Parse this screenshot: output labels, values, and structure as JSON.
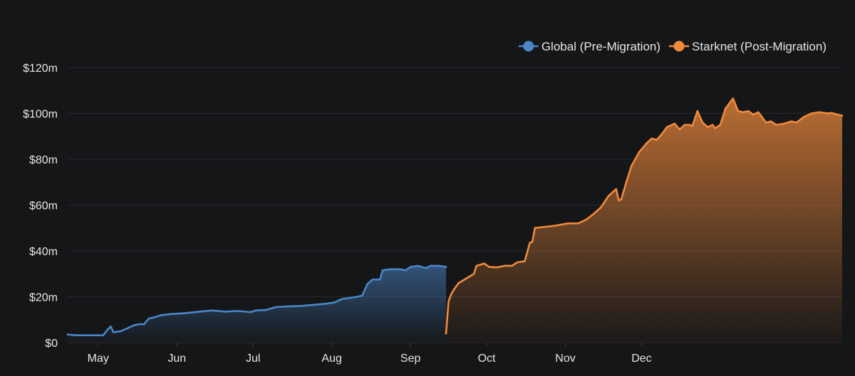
{
  "chart_data": {
    "type": "area",
    "title": "",
    "xlabel": "",
    "ylabel": "",
    "x_ticks": [
      "May",
      "Jun",
      "Jul",
      "Aug",
      "Sep",
      "Oct",
      "Nov",
      "Dec"
    ],
    "y_ticks": [
      "$0",
      "$20m",
      "$40m",
      "$60m",
      "$80m",
      "$100m",
      "$120m"
    ],
    "ylim": [
      0,
      120
    ],
    "y_unit": "$m",
    "grid": true,
    "legend_position": "top-right",
    "series": [
      {
        "name": "Global (Pre-Migration)",
        "color": "#4a86c8",
        "points": [
          [
            "04-19",
            3.5
          ],
          [
            "04-22",
            3.2
          ],
          [
            "04-26",
            3.2
          ],
          [
            "04-30",
            3.2
          ],
          [
            "05-03",
            3.2
          ],
          [
            "05-05",
            6.0
          ],
          [
            "05-06",
            7.0
          ],
          [
            "05-07",
            4.5
          ],
          [
            "05-10",
            5.0
          ],
          [
            "05-13",
            6.5
          ],
          [
            "05-15",
            7.5
          ],
          [
            "05-17",
            8.0
          ],
          [
            "05-19",
            8.0
          ],
          [
            "05-21",
            10.5
          ],
          [
            "05-23",
            11.0
          ],
          [
            "05-26",
            12.0
          ],
          [
            "05-30",
            12.5
          ],
          [
            "06-04",
            12.8
          ],
          [
            "06-10",
            13.5
          ],
          [
            "06-15",
            14.0
          ],
          [
            "06-20",
            13.5
          ],
          [
            "06-25",
            13.8
          ],
          [
            "06-30",
            13.3
          ],
          [
            "07-02",
            14.0
          ],
          [
            "07-06",
            14.2
          ],
          [
            "07-10",
            15.5
          ],
          [
            "07-15",
            15.8
          ],
          [
            "07-20",
            16.0
          ],
          [
            "07-25",
            16.5
          ],
          [
            "07-30",
            17.0
          ],
          [
            "08-02",
            17.5
          ],
          [
            "08-05",
            19.0
          ],
          [
            "08-08",
            19.5
          ],
          [
            "08-11",
            20.0
          ],
          [
            "08-13",
            20.5
          ],
          [
            "08-15",
            25.5
          ],
          [
            "08-17",
            27.5
          ],
          [
            "08-20",
            27.5
          ],
          [
            "08-21",
            31.5
          ],
          [
            "08-24",
            32.0
          ],
          [
            "08-28",
            32.0
          ],
          [
            "08-30",
            31.5
          ],
          [
            "09-01",
            33.0
          ],
          [
            "09-04",
            33.5
          ],
          [
            "09-07",
            32.5
          ],
          [
            "09-09",
            33.5
          ],
          [
            "09-12",
            33.5
          ],
          [
            "09-15",
            33.0
          ]
        ]
      },
      {
        "name": "Starknet (Post-Migration)",
        "color": "#f08a3c",
        "points": [
          [
            "09-15",
            4.0
          ],
          [
            "09-16",
            18.0
          ],
          [
            "09-17",
            21.0
          ],
          [
            "09-18",
            23.0
          ],
          [
            "09-20",
            26.0
          ],
          [
            "09-23",
            28.0
          ],
          [
            "09-26",
            30.0
          ],
          [
            "09-27",
            33.5
          ],
          [
            "09-30",
            34.5
          ],
          [
            "10-02",
            33.0
          ],
          [
            "10-05",
            32.8
          ],
          [
            "10-08",
            33.5
          ],
          [
            "10-11",
            33.5
          ],
          [
            "10-13",
            35.0
          ],
          [
            "10-16",
            35.5
          ],
          [
            "10-18",
            43.5
          ],
          [
            "10-19",
            44.0
          ],
          [
            "10-20",
            50.0
          ],
          [
            "10-24",
            50.5
          ],
          [
            "10-28",
            51.0
          ],
          [
            "11-02",
            52.0
          ],
          [
            "11-06",
            52.0
          ],
          [
            "11-09",
            53.5
          ],
          [
            "11-12",
            56.0
          ],
          [
            "11-15",
            59.0
          ],
          [
            "11-18",
            64.0
          ],
          [
            "11-21",
            67.0
          ],
          [
            "11-22",
            62.0
          ],
          [
            "11-23",
            62.5
          ],
          [
            "11-25",
            70.0
          ],
          [
            "11-27",
            77.0
          ],
          [
            "11-30",
            83.0
          ],
          [
            "12-03",
            87.0
          ],
          [
            "12-05",
            89.0
          ],
          [
            "12-07",
            88.5
          ],
          [
            "12-09",
            91.0
          ],
          [
            "12-11",
            94.0
          ],
          [
            "12-14",
            95.5
          ],
          [
            "12-16",
            93.0
          ],
          [
            "12-18",
            95.0
          ],
          [
            "12-20",
            95.0
          ],
          [
            "12-21",
            94.5
          ],
          [
            "12-23",
            101.0
          ],
          [
            "12-25",
            96.0
          ],
          [
            "12-27",
            94.0
          ],
          [
            "12-29",
            95.0
          ],
          [
            "12-30",
            93.5
          ],
          [
            "01-01",
            95.0
          ],
          [
            "01-03",
            102.0
          ],
          [
            "01-06",
            106.5
          ],
          [
            "01-08",
            101.0
          ],
          [
            "01-10",
            100.5
          ],
          [
            "01-12",
            101.0
          ],
          [
            "01-14",
            99.5
          ],
          [
            "01-16",
            100.5
          ],
          [
            "01-19",
            96.0
          ],
          [
            "01-21",
            96.5
          ],
          [
            "01-23",
            95.0
          ],
          [
            "01-26",
            95.5
          ],
          [
            "01-29",
            96.5
          ],
          [
            "01-31",
            96.0
          ],
          [
            "02-03",
            98.5
          ],
          [
            "02-06",
            100.0
          ],
          [
            "02-09",
            100.5
          ],
          [
            "02-12",
            100.0
          ],
          [
            "02-14",
            100.2
          ],
          [
            "02-16",
            99.5
          ],
          [
            "02-18",
            99.0
          ]
        ]
      }
    ]
  }
}
